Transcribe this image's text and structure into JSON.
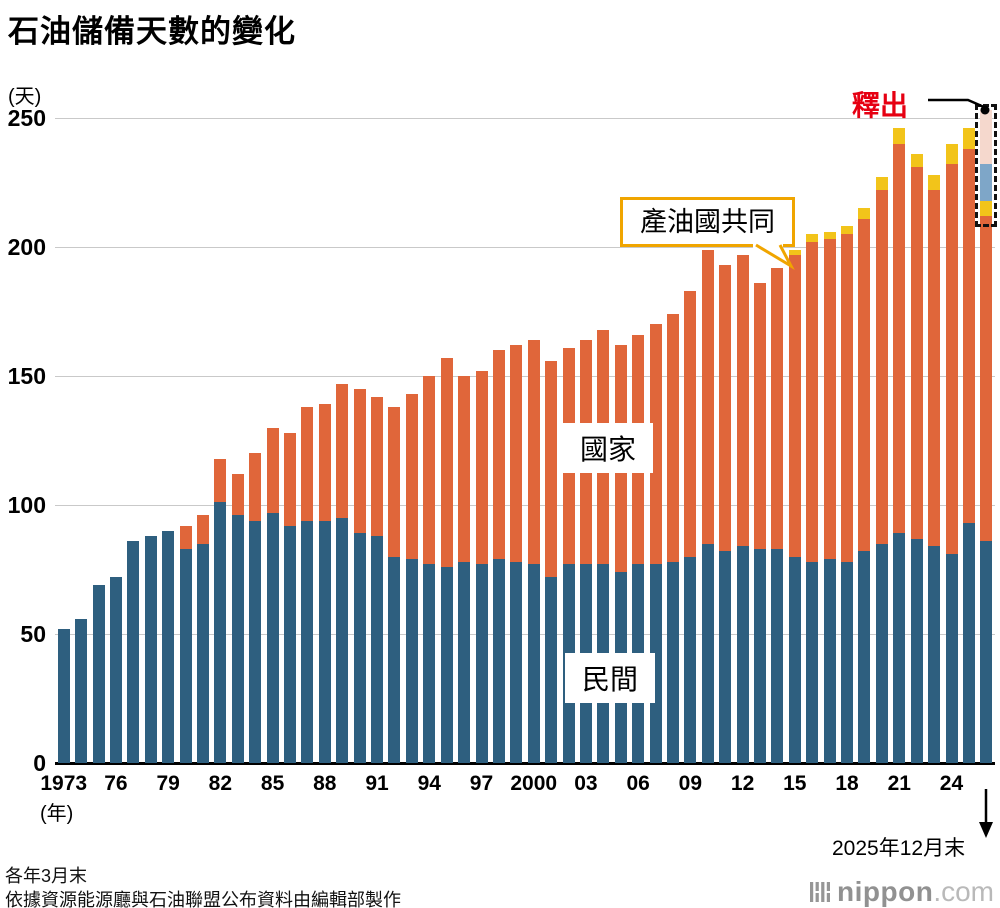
{
  "chart_data": {
    "type": "bar",
    "stacked": true,
    "title": "石油儲備天數的變化",
    "ylabel": "(天)",
    "xlabel": "(年)",
    "ylim": [
      0,
      250
    ],
    "yticks": [
      0,
      50,
      100,
      150,
      200,
      250
    ],
    "x_ticks": [
      {
        "label": "1973",
        "bar": 0
      },
      {
        "label": "76",
        "bar": 3
      },
      {
        "label": "79",
        "bar": 6
      },
      {
        "label": "82",
        "bar": 9
      },
      {
        "label": "85",
        "bar": 12
      },
      {
        "label": "88",
        "bar": 15
      },
      {
        "label": "91",
        "bar": 18
      },
      {
        "label": "94",
        "bar": 21
      },
      {
        "label": "97",
        "bar": 24
      },
      {
        "label": "2000",
        "bar": 27
      },
      {
        "label": "03",
        "bar": 30
      },
      {
        "label": "06",
        "bar": 33
      },
      {
        "label": "09",
        "bar": 36
      },
      {
        "label": "12",
        "bar": 39
      },
      {
        "label": "15",
        "bar": 42
      },
      {
        "label": "18",
        "bar": 45
      },
      {
        "label": "21",
        "bar": 48
      },
      {
        "label": "24",
        "bar": 51
      }
    ],
    "series": [
      {
        "key": "private",
        "name": "民間",
        "color": "#2e5f7f"
      },
      {
        "key": "national",
        "name": "國家",
        "color": "#e0663a"
      },
      {
        "key": "joint",
        "name": "產油國共同",
        "color": "#f2c41a"
      },
      {
        "key": "release_blue",
        "name": "釋出",
        "color": "#7ea6c8"
      },
      {
        "key": "release_pink",
        "name": "釋出",
        "color": "#f5d8cd"
      }
    ],
    "bars": [
      {
        "year": "1973",
        "private": 52,
        "national": 0,
        "joint": 0
      },
      {
        "year": "1974",
        "private": 56,
        "national": 0,
        "joint": 0
      },
      {
        "year": "1975",
        "private": 69,
        "national": 0,
        "joint": 0
      },
      {
        "year": "1976",
        "private": 72,
        "national": 0,
        "joint": 0
      },
      {
        "year": "1977",
        "private": 86,
        "national": 0,
        "joint": 0
      },
      {
        "year": "1978",
        "private": 88,
        "national": 0,
        "joint": 0
      },
      {
        "year": "1979",
        "private": 90,
        "national": 0,
        "joint": 0
      },
      {
        "year": "1980",
        "private": 83,
        "national": 9,
        "joint": 0
      },
      {
        "year": "1981",
        "private": 85,
        "national": 11,
        "joint": 0
      },
      {
        "year": "1982",
        "private": 101,
        "national": 17,
        "joint": 0
      },
      {
        "year": "1983",
        "private": 96,
        "national": 16,
        "joint": 0
      },
      {
        "year": "1984",
        "private": 94,
        "national": 26,
        "joint": 0
      },
      {
        "year": "1985",
        "private": 97,
        "national": 33,
        "joint": 0
      },
      {
        "year": "1986",
        "private": 92,
        "national": 36,
        "joint": 0
      },
      {
        "year": "1987",
        "private": 94,
        "national": 44,
        "joint": 0
      },
      {
        "year": "1988",
        "private": 94,
        "national": 45,
        "joint": 0
      },
      {
        "year": "1989",
        "private": 95,
        "national": 52,
        "joint": 0
      },
      {
        "year": "1990",
        "private": 89,
        "national": 56,
        "joint": 0
      },
      {
        "year": "1991",
        "private": 88,
        "national": 54,
        "joint": 0
      },
      {
        "year": "1992",
        "private": 80,
        "national": 58,
        "joint": 0
      },
      {
        "year": "1993",
        "private": 79,
        "national": 64,
        "joint": 0
      },
      {
        "year": "1994",
        "private": 77,
        "national": 73,
        "joint": 0
      },
      {
        "year": "1995",
        "private": 76,
        "national": 81,
        "joint": 0
      },
      {
        "year": "1996",
        "private": 78,
        "national": 72,
        "joint": 0
      },
      {
        "year": "1997",
        "private": 77,
        "national": 75,
        "joint": 0
      },
      {
        "year": "1998",
        "private": 79,
        "national": 81,
        "joint": 0
      },
      {
        "year": "1999",
        "private": 78,
        "national": 84,
        "joint": 0
      },
      {
        "year": "2000",
        "private": 77,
        "national": 87,
        "joint": 0
      },
      {
        "year": "2001",
        "private": 72,
        "national": 84,
        "joint": 0
      },
      {
        "year": "2002",
        "private": 77,
        "national": 84,
        "joint": 0
      },
      {
        "year": "2003",
        "private": 77,
        "national": 87,
        "joint": 0
      },
      {
        "year": "2004",
        "private": 77,
        "national": 91,
        "joint": 0
      },
      {
        "year": "2005",
        "private": 74,
        "national": 88,
        "joint": 0
      },
      {
        "year": "2006",
        "private": 77,
        "national": 89,
        "joint": 0
      },
      {
        "year": "2007",
        "private": 77,
        "national": 93,
        "joint": 0
      },
      {
        "year": "2008",
        "private": 78,
        "national": 96,
        "joint": 0
      },
      {
        "year": "2009",
        "private": 80,
        "national": 103,
        "joint": 0
      },
      {
        "year": "2010",
        "private": 85,
        "national": 114,
        "joint": 0
      },
      {
        "year": "2011",
        "private": 82,
        "national": 111,
        "joint": 0
      },
      {
        "year": "2012",
        "private": 84,
        "national": 113,
        "joint": 0
      },
      {
        "year": "2013",
        "private": 83,
        "national": 103,
        "joint": 0
      },
      {
        "year": "2014",
        "private": 83,
        "national": 109,
        "joint": 0
      },
      {
        "year": "2015",
        "private": 80,
        "national": 117,
        "joint": 2
      },
      {
        "year": "2016",
        "private": 78,
        "national": 124,
        "joint": 3
      },
      {
        "year": "2017",
        "private": 79,
        "national": 124,
        "joint": 3
      },
      {
        "year": "2018",
        "private": 78,
        "national": 127,
        "joint": 3
      },
      {
        "year": "2019",
        "private": 82,
        "national": 129,
        "joint": 4
      },
      {
        "year": "2020",
        "private": 85,
        "national": 137,
        "joint": 5
      },
      {
        "year": "2021",
        "private": 89,
        "national": 151,
        "joint": 6
      },
      {
        "year": "2022",
        "private": 87,
        "national": 144,
        "joint": 5
      },
      {
        "year": "2023",
        "private": 84,
        "national": 138,
        "joint": 6
      },
      {
        "year": "2024",
        "private": 81,
        "national": 151,
        "joint": 8
      },
      {
        "year": "2025",
        "private": 93,
        "national": 145,
        "joint": 8
      },
      {
        "year": "2025年12月末",
        "private": 86,
        "national": 126,
        "joint": 6,
        "release_blue": 14,
        "release_pink": 21,
        "highlight": true
      }
    ]
  },
  "annotations": {
    "national_label": "國家",
    "private_label": "民間",
    "joint_callout": "產油國共同",
    "release_label": "釋出",
    "last_bar_note": "2025年12月末"
  },
  "footer": {
    "note1": "各年3月末",
    "note2": "依據資源能源廳與石油聯盟公布資料由編輯部製作"
  },
  "logo": {
    "name": "nippon",
    "tld": ".com"
  },
  "colors": {
    "grid": "#c9c9c9",
    "axis": "#000000",
    "release_red": "#e60012",
    "callout_border": "#f0a500",
    "dash_outline": "#111111"
  }
}
